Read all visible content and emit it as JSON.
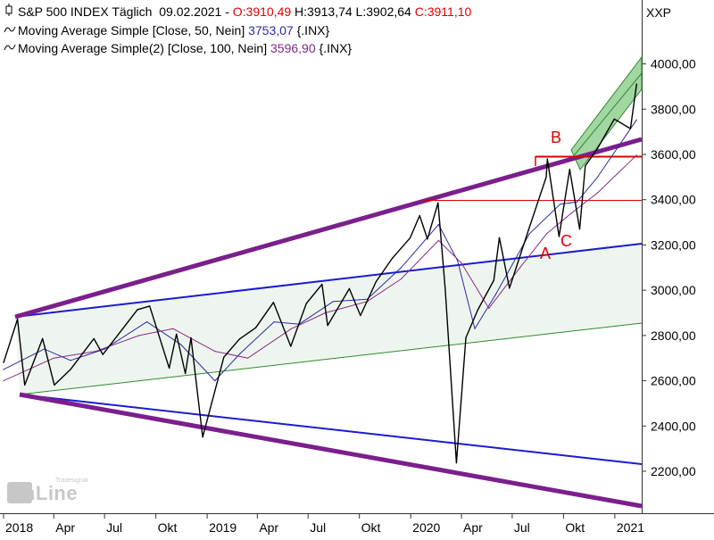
{
  "header": {
    "symbol_line": "S&P 500 INDEX Täglich",
    "date": "09.02.2021",
    "open": "O:3910,49",
    "high": "H:3913,74",
    "low": "L:3902,64",
    "close": "C:3911,10",
    "ma1_label": "Moving Average Simple [Close, 50, Nein]",
    "ma1_value": "3753,07",
    "ma1_suffix": "{.INX}",
    "ma2_label": "Moving Average Simple(2) [Close, 100, Nein]",
    "ma2_value": "3596,90",
    "ma2_suffix": "{.INX}"
  },
  "colors": {
    "price": "#000000",
    "ma50": "#2a2aa6",
    "ma100": "#8b2a8b",
    "purple_trend": "#7a1f8c",
    "blue_trend": "#1b1bd0",
    "green_channel": "#2e8b2e",
    "red_level": "#e00000"
  },
  "watermark": {
    "brand": "onLine",
    "small": "Tradesignal"
  },
  "chart_data": {
    "type": "line",
    "axis_title": "XXP",
    "y_ticks": [
      "4000,00",
      "3800,00",
      "3600,00",
      "3400,00",
      "3200,00",
      "3000,00",
      "2800,00",
      "2600,00",
      "2400,00",
      "2200,00"
    ],
    "y_tick_values": [
      4000,
      3800,
      3600,
      3400,
      3200,
      3000,
      2800,
      2600,
      2400,
      2200
    ],
    "ylim": [
      2030,
      4080
    ],
    "x_ticks": [
      "2018",
      "Apr",
      "Jul",
      "Okt",
      "2019",
      "Apr",
      "Jul",
      "Okt",
      "2020",
      "Apr",
      "Jul",
      "Okt",
      "2021"
    ],
    "x_tick_dates": [
      "2018-01-01",
      "2018-04-01",
      "2018-07-01",
      "2018-10-01",
      "2019-01-01",
      "2019-04-01",
      "2019-07-01",
      "2019-10-01",
      "2020-01-01",
      "2020-04-01",
      "2020-07-01",
      "2020-10-01",
      "2021-01-01"
    ],
    "xlim": [
      "2018-01-01",
      "2021-02-15"
    ],
    "annotations": [
      "A",
      "B",
      "C"
    ],
    "series": [
      {
        "name": "S&P 500 INDEX",
        "x": [
          "2018-01-01",
          "2018-01-26",
          "2018-02-08",
          "2018-03-12",
          "2018-04-02",
          "2018-05-01",
          "2018-06-12",
          "2018-06-28",
          "2018-08-29",
          "2018-09-20",
          "2018-10-25",
          "2018-11-07",
          "2018-11-23",
          "2018-12-03",
          "2018-12-24",
          "2019-01-31",
          "2019-02-28",
          "2019-03-29",
          "2019-04-30",
          "2019-05-31",
          "2019-06-28",
          "2019-07-26",
          "2019-08-05",
          "2019-09-13",
          "2019-10-03",
          "2019-10-31",
          "2019-11-29",
          "2019-12-31",
          "2020-01-17",
          "2020-01-31",
          "2020-02-19",
          "2020-03-03",
          "2020-03-23",
          "2020-04-09",
          "2020-04-30",
          "2020-05-29",
          "2020-06-08",
          "2020-06-26",
          "2020-07-31",
          "2020-08-31",
          "2020-09-02",
          "2020-09-23",
          "2020-10-12",
          "2020-10-30",
          "2020-11-09",
          "2020-11-30",
          "2020-12-31",
          "2021-01-29",
          "2021-02-09"
        ],
        "values": [
          2680,
          2872,
          2581,
          2786,
          2581,
          2650,
          2786,
          2716,
          2914,
          2930,
          2656,
          2806,
          2632,
          2790,
          2351,
          2704,
          2784,
          2834,
          2946,
          2752,
          2942,
          3026,
          2844,
          3007,
          2888,
          3038,
          3141,
          3231,
          3330,
          3226,
          3386,
          3003,
          2237,
          2790,
          2912,
          3044,
          3232,
          3009,
          3271,
          3500,
          3580,
          3237,
          3534,
          3270,
          3550,
          3622,
          3756,
          3714,
          3911
        ]
      },
      {
        "name": "Moving Average Simple [Close, 50, Nein]",
        "x": [
          "2018-01-01",
          "2018-03-15",
          "2018-05-01",
          "2018-07-01",
          "2018-09-15",
          "2018-11-15",
          "2019-01-15",
          "2019-03-01",
          "2019-05-01",
          "2019-06-15",
          "2019-08-15",
          "2019-10-15",
          "2019-12-15",
          "2020-02-20",
          "2020-03-25",
          "2020-04-25",
          "2020-06-01",
          "2020-08-01",
          "2020-09-25",
          "2020-10-25",
          "2020-12-01",
          "2021-02-09"
        ],
        "values": [
          2650,
          2740,
          2690,
          2740,
          2860,
          2760,
          2600,
          2720,
          2860,
          2850,
          2950,
          2960,
          3100,
          3290,
          3130,
          2830,
          2980,
          3250,
          3380,
          3390,
          3500,
          3753
        ]
      },
      {
        "name": "Moving Average Simple(2) [Close, 100, Nein]",
        "x": [
          "2018-01-01",
          "2018-04-01",
          "2018-06-15",
          "2018-09-01",
          "2018-11-01",
          "2019-01-15",
          "2019-03-15",
          "2019-06-01",
          "2019-08-01",
          "2019-10-15",
          "2019-12-15",
          "2020-02-20",
          "2020-04-01",
          "2020-05-20",
          "2020-07-15",
          "2020-09-01",
          "2020-10-15",
          "2020-12-01",
          "2021-02-09"
        ],
        "values": [
          2600,
          2700,
          2730,
          2800,
          2830,
          2730,
          2700,
          2830,
          2900,
          2950,
          3050,
          3220,
          3120,
          2920,
          3100,
          3250,
          3340,
          3430,
          3597
        ]
      }
    ]
  }
}
